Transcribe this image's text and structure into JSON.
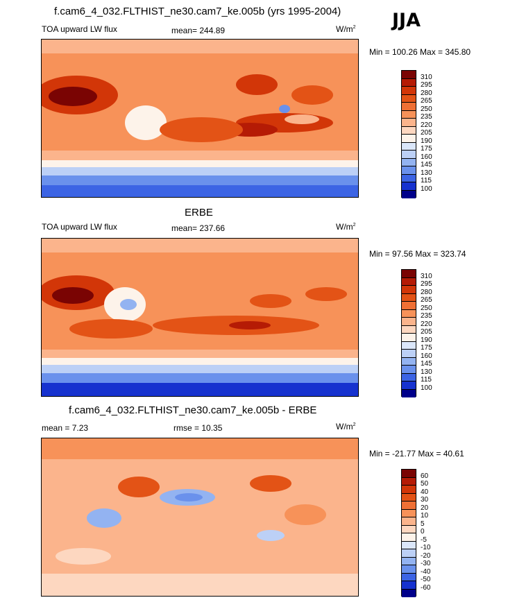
{
  "season": "JJA",
  "panels": [
    {
      "title": "f.cam6_4_032.FLTHIST_ne30.cam7_ke.005b (yrs 1995-2004)",
      "left_label": "TOA upward LW flux",
      "mid_label": "mean= 244.89",
      "units": "W/m",
      "units_exp": "2",
      "minmax": "Min = 100.26 Max = 345.80",
      "ticks": [
        "310",
        "295",
        "280",
        "265",
        "250",
        "235",
        "220",
        "205",
        "190",
        "175",
        "160",
        "145",
        "130",
        "115",
        "100"
      ],
      "colors": [
        "#7a0403",
        "#b51b05",
        "#d23608",
        "#e35316",
        "#ef7035",
        "#f79259",
        "#fbb48c",
        "#fdd7c0",
        "#fdf3ea",
        "#dbe7fa",
        "#bcd0f6",
        "#93b3f1",
        "#6a91ec",
        "#3c64e4",
        "#1632cf",
        "#00008b"
      ]
    },
    {
      "title": "ERBE",
      "left_label": "TOA upward LW flux",
      "mid_label": "mean= 237.66",
      "units": "W/m",
      "units_exp": "2",
      "minmax": "Min =  97.56 Max = 323.74",
      "ticks": [
        "310",
        "295",
        "280",
        "265",
        "250",
        "235",
        "220",
        "205",
        "190",
        "175",
        "160",
        "145",
        "130",
        "115",
        "100"
      ],
      "colors": [
        "#7a0403",
        "#b51b05",
        "#d23608",
        "#e35316",
        "#ef7035",
        "#f79259",
        "#fbb48c",
        "#fdd7c0",
        "#fdf3ea",
        "#dbe7fa",
        "#bcd0f6",
        "#93b3f1",
        "#6a91ec",
        "#3c64e4",
        "#1632cf",
        "#00008b"
      ]
    },
    {
      "title": "f.cam6_4_032.FLTHIST_ne30.cam7_ke.005b - ERBE",
      "left_label": "mean =   7.23",
      "mid_label": "rmse =  10.35",
      "units": "W/m",
      "units_exp": "2",
      "minmax": "Min = -21.77 Max =  40.61",
      "ticks": [
        "60",
        "50",
        "40",
        "30",
        "20",
        "10",
        "5",
        "0",
        "-5",
        "-10",
        "-20",
        "-30",
        "-40",
        "-50",
        "-60"
      ],
      "colors": [
        "#7a0403",
        "#b51b05",
        "#d23608",
        "#e35316",
        "#ef7035",
        "#f79259",
        "#fbb48c",
        "#fdd7c0",
        "#fdf3ea",
        "#dbe7fa",
        "#bcd0f6",
        "#93b3f1",
        "#6a91ec",
        "#3c64e4",
        "#1632cf",
        "#00008b"
      ]
    }
  ]
}
